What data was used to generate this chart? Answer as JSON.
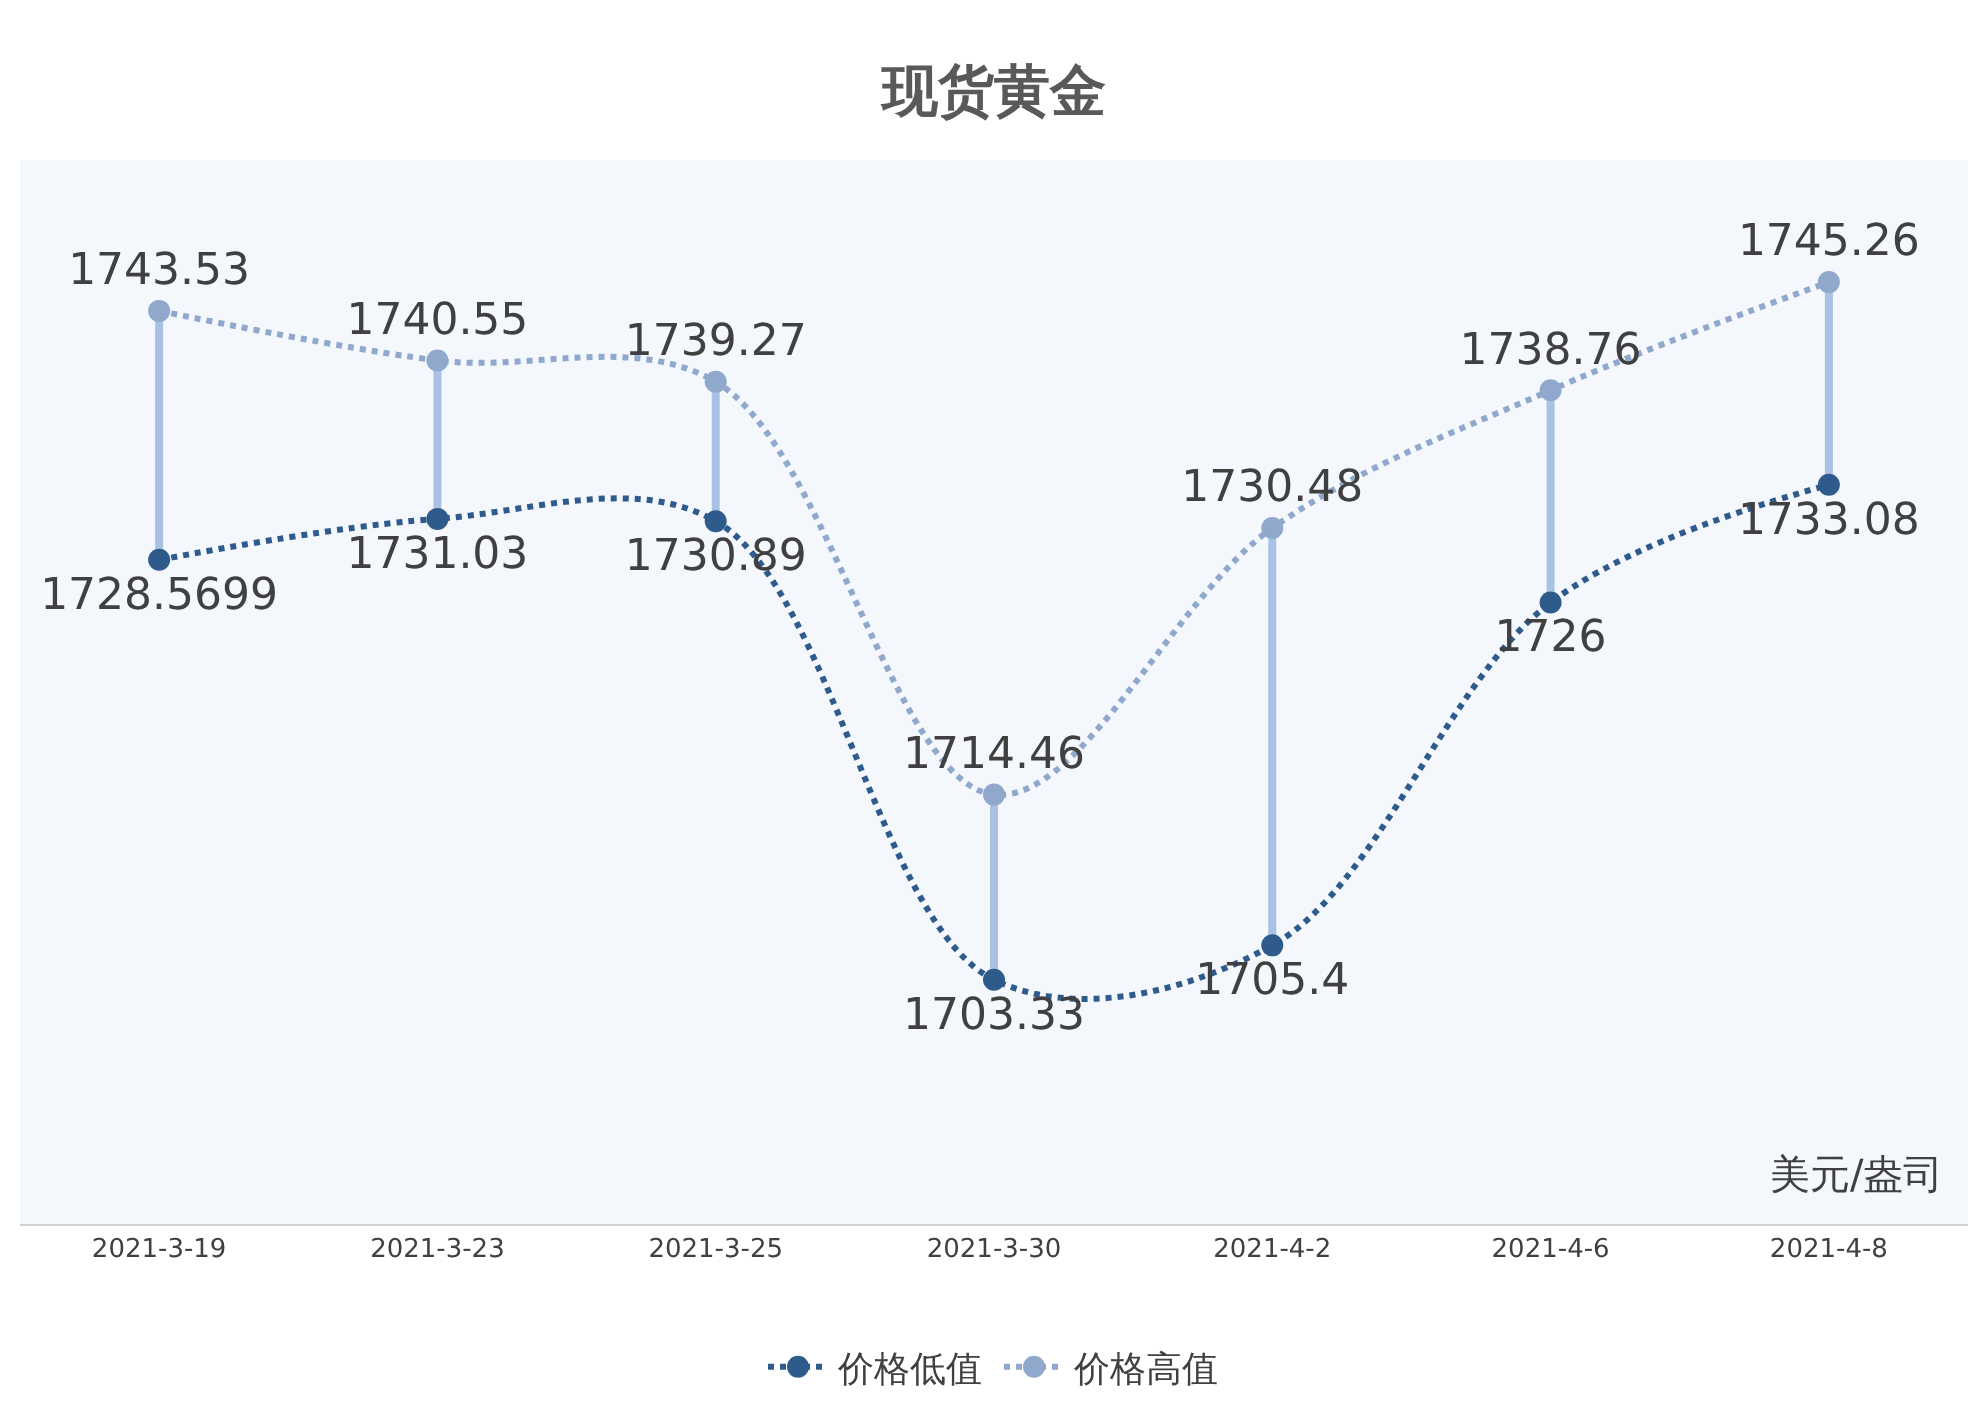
{
  "chart_data": {
    "type": "line",
    "title": "现货黄金",
    "categories": [
      "2021-3-19",
      "2021-3-23",
      "2021-3-25",
      "2021-3-30",
      "2021-4-2",
      "2021-4-6",
      "2021-4-8"
    ],
    "series": [
      {
        "name": "价格低值",
        "color": "#2f5b8c",
        "values": [
          1728.5699,
          1731.03,
          1730.89,
          1703.33,
          1705.4,
          1726,
          1733.08
        ]
      },
      {
        "name": "价格高值",
        "color": "#8fa8cc",
        "values": [
          1743.53,
          1740.55,
          1739.27,
          1714.46,
          1730.48,
          1738.76,
          1745.26
        ]
      }
    ],
    "data_labels": true,
    "marker": "circle",
    "line_style": "dotted",
    "legend": "bottom",
    "grid": false,
    "tick_labels": "x",
    "annotations": [
      "美元/盎司"
    ]
  }
}
